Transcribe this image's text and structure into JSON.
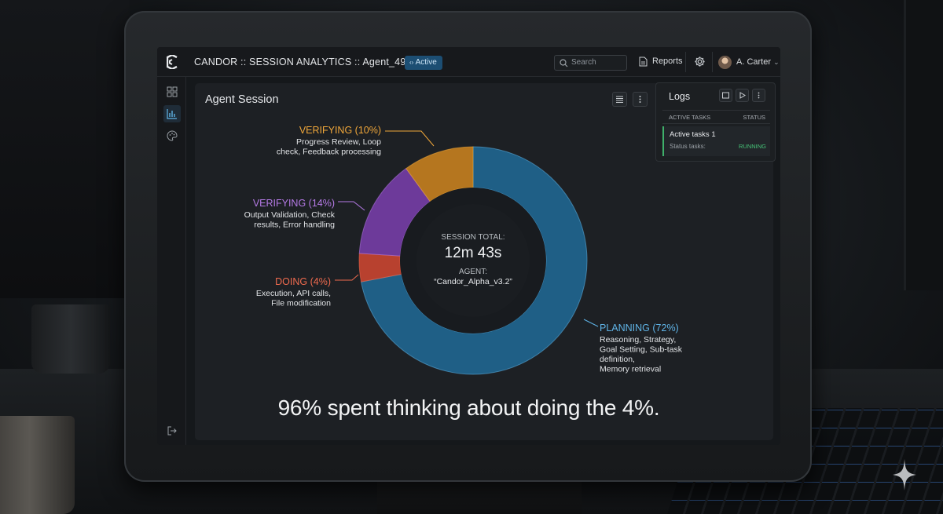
{
  "app": {
    "title": "CANDOR :: SESSION ANALYTICS :: Agent_49b1a",
    "status_badge": "Active"
  },
  "header": {
    "search_placeholder": "Search",
    "reports_label": "Reports",
    "user_name": "A. Carter"
  },
  "sidebar": {
    "items": [
      {
        "icon": "grid-icon"
      },
      {
        "icon": "bar-chart-icon",
        "active": true
      },
      {
        "icon": "palette-icon"
      }
    ],
    "bottom_icon": "logout-icon"
  },
  "panel": {
    "title": "Agent Session"
  },
  "center": {
    "label": "SESSION TOTAL:",
    "total": "12m 43s",
    "agent_label": "AGENT:",
    "agent_name": "“Candor_Alpha_v3.2”"
  },
  "chart_data": {
    "type": "pie",
    "values": [
      72,
      4,
      14,
      10
    ],
    "labels": [
      "PLANNING (72%)",
      "DOING (4%)",
      "VERIFYING (14%)",
      "VERIFYING (10%)"
    ],
    "descriptions": [
      [
        "Reasoning, Strategy,",
        "Goal Setting, Sub-task",
        "definition,",
        "Memory retrieval"
      ],
      [
        "Execution, API calls,",
        "File modification"
      ],
      [
        "Output Validation, Check",
        "results, Error handling"
      ],
      [
        "Progress Review, Loop",
        "check, Feedback processing"
      ]
    ],
    "colors": [
      "#1f5f86",
      "#b8412f",
      "#6d3a9a",
      "#b5761f"
    ],
    "label_colors": [
      "#5fb3e6",
      "#ee6a4e",
      "#b57ae6",
      "#f0a73a"
    ]
  },
  "caption": "96% spent thinking about doing the 4%.",
  "logs": {
    "title": "Logs",
    "col_task": "ACTIVE TASKS",
    "col_status": "STATUS",
    "row_task": "Active tasks 1",
    "row_sub": "Status tasks:",
    "row_status": "RUNNING"
  }
}
